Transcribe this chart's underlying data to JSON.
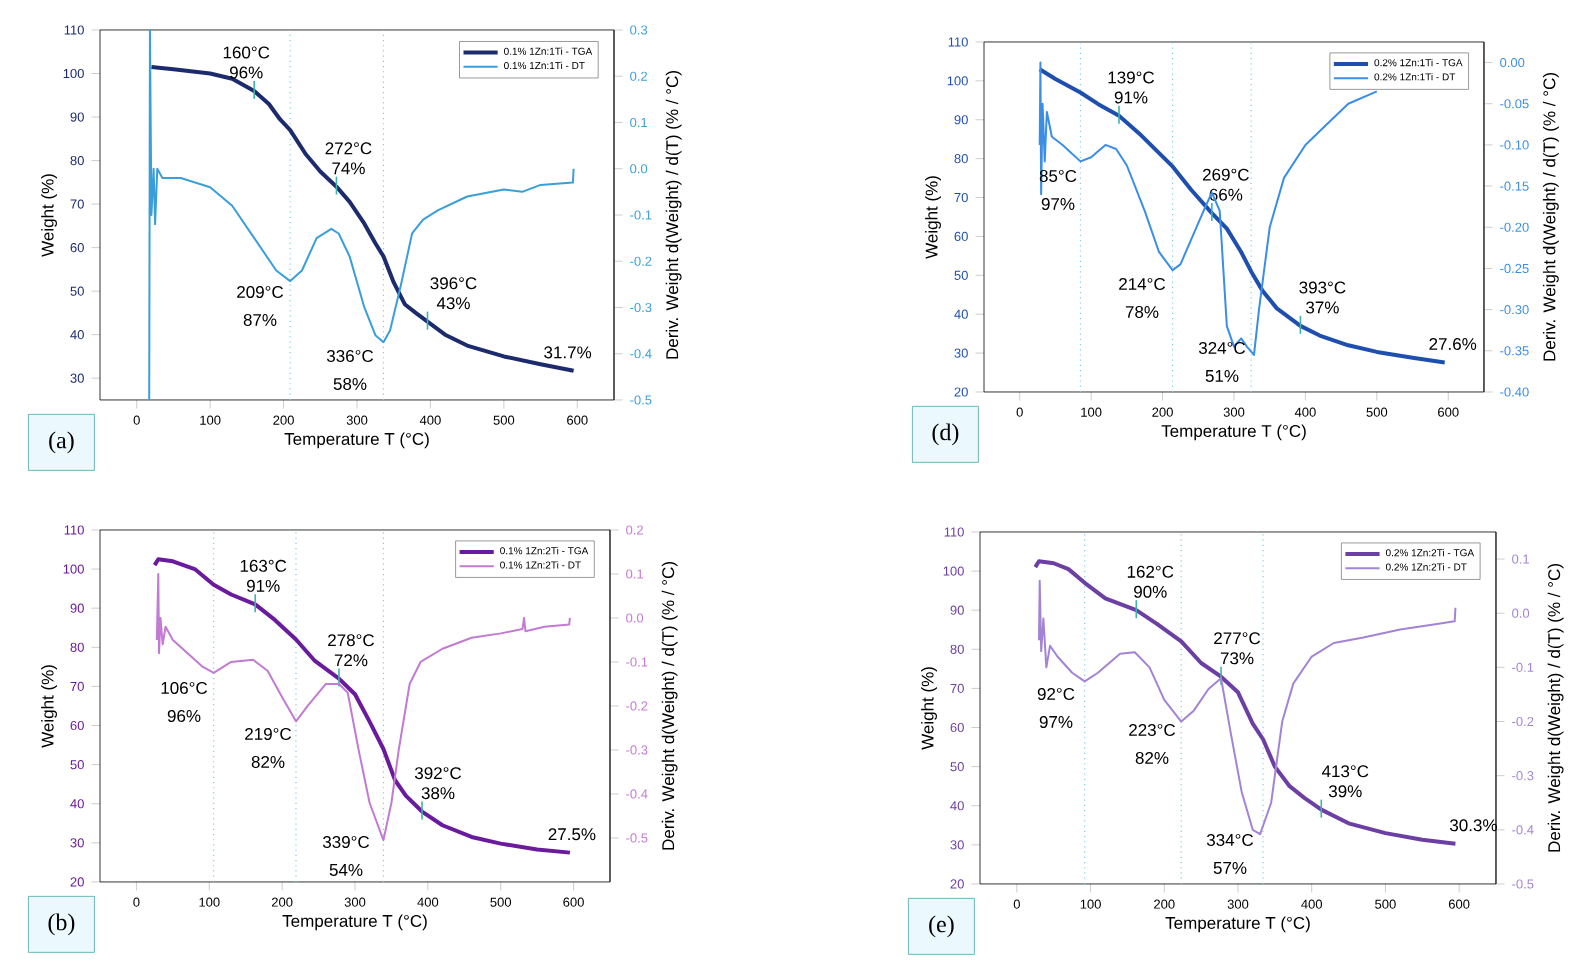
{
  "chart_data": [
    {
      "type": "line",
      "xlabel": "Temperature T (°C)",
      "ylabel": "Weight (%)",
      "y2label": "Deriv. Weight d(Weight) / d(T) (% / °C)",
      "xlim": [
        -50,
        650
      ],
      "xticks": [
        0,
        100,
        200,
        300,
        400,
        500,
        600
      ],
      "ylim": [
        25,
        110
      ],
      "yticks": [
        30,
        40,
        50,
        60,
        70,
        80,
        90,
        100,
        110
      ],
      "y2lim": [
        -0.5,
        0.3
      ],
      "y2ticks": [
        -0.5,
        -0.4,
        -0.3,
        -0.2,
        -0.1,
        {
          "value": 0,
          "label": "0.0"
        },
        0.1,
        0.2,
        0.3
      ],
      "legend": "top right",
      "series": [
        {
          "name": "0.1% 1Zn:1Ti - TGA",
          "color": "#1c2a6e",
          "x": [
            20,
            50,
            100,
            130,
            160,
            180,
            195,
            209,
            230,
            250,
            272,
            290,
            310,
            325,
            336,
            350,
            365,
            380,
            396,
            420,
            450,
            500,
            550,
            595
          ],
          "values": [
            101.5,
            101,
            100,
            98.8,
            96,
            93,
            89.5,
            87,
            81.5,
            77.5,
            74,
            70.5,
            65.5,
            61,
            58,
            52,
            47,
            45,
            43,
            40,
            37.5,
            35,
            33.2,
            31.7
          ]
        },
        {
          "name": "0.1% 1Zn:1Ti - DT",
          "color": "#3a9fd8",
          "axis": "y2",
          "x": [
            17,
            18,
            20,
            23,
            25,
            28,
            35,
            60,
            100,
            130,
            160,
            190,
            209,
            225,
            245,
            265,
            275,
            290,
            310,
            325,
            336,
            345,
            360,
            375,
            390,
            410,
            450,
            500,
            525,
            550,
            594,
            595
          ],
          "values": [
            -0.5,
            0.3,
            -0.1,
            0.0,
            -0.12,
            0.0,
            -0.02,
            -0.02,
            -0.04,
            -0.08,
            -0.15,
            -0.22,
            -0.243,
            -0.22,
            -0.15,
            -0.13,
            -0.14,
            -0.19,
            -0.3,
            -0.36,
            -0.375,
            -0.35,
            -0.25,
            -0.14,
            -0.11,
            -0.09,
            -0.06,
            -0.045,
            -0.05,
            -0.035,
            -0.03,
            0.0
          ]
        }
      ],
      "ref_lines": [
        {
          "axis": "x",
          "value": 209,
          "color": "#7fcfe3",
          "line_style": "dotted"
        },
        {
          "axis": "x",
          "value": 336,
          "color": "#7fcfe3",
          "line_style": "dotted"
        }
      ],
      "annotations": [
        {
          "text": "160°C",
          "x": 160,
          "y": 96
        },
        {
          "text": "96%",
          "x": 160,
          "y": 96
        },
        "209°C",
        "87%",
        {
          "text": "272°C",
          "x": 272,
          "y": 74
        },
        {
          "text": "74%",
          "x": 272,
          "y": 74
        },
        "336°C",
        "58%",
        {
          "text": "396°C",
          "x": 396,
          "y": 43
        },
        {
          "text": "43%",
          "x": 396,
          "y": 43
        },
        {
          "text": "31.7%",
          "x": 595,
          "y": 31.7
        },
        "(a)"
      ]
    },
    {
      "type": "line",
      "xlabel": "Temperature T (°C)",
      "ylabel": "Weight (%)",
      "y2label": "Deriv. Weight d(Weight) / d(T) (% / °C)",
      "xlim": [
        -50,
        650
      ],
      "xticks": [
        0,
        100,
        200,
        300,
        400,
        500,
        600
      ],
      "ylim": [
        20,
        110
      ],
      "yticks": [
        20,
        30,
        40,
        50,
        60,
        70,
        80,
        90,
        100,
        110
      ],
      "y2lim": [
        -0.4,
        0.025
      ],
      "y2ticks": [
        {
          "value": -0.4,
          "label": "-0.40"
        },
        -0.35,
        {
          "value": -0.3,
          "label": "-0.30"
        },
        -0.25,
        {
          "value": -0.2,
          "label": "-0.20"
        },
        -0.15,
        {
          "value": -0.1,
          "label": "-0.10"
        },
        -0.05,
        {
          "value": 0,
          "label": "0.00"
        }
      ],
      "legend": "top right",
      "series": [
        {
          "name": "0.2% 1Zn:1Ti - TGA",
          "color": "#1f4fae",
          "x": [
            28,
            50,
            85,
            110,
            139,
            170,
            214,
            240,
            269,
            290,
            310,
            324,
            340,
            360,
            393,
            420,
            460,
            500,
            550,
            595
          ],
          "values": [
            103,
            100.5,
            97,
            94,
            91,
            86,
            78,
            72,
            66,
            62,
            56,
            51,
            46,
            41.5,
            37,
            34.5,
            32,
            30.3,
            28.8,
            27.6
          ]
        },
        {
          "name": "0.2% 1Zn:1Ti - DT",
          "color": "#3a8ee8",
          "axis": "y2",
          "x": [
            28,
            29,
            30,
            32,
            35,
            38,
            45,
            60,
            85,
            100,
            120,
            135,
            150,
            175,
            195,
            214,
            225,
            240,
            260,
            269,
            280,
            290,
            300,
            310,
            318,
            328,
            335,
            350,
            370,
            400,
            430,
            460,
            500
          ],
          "values": [
            -0.1,
            0.0,
            -0.16,
            -0.05,
            -0.12,
            -0.06,
            -0.09,
            -0.1,
            -0.12,
            -0.115,
            -0.1,
            -0.105,
            -0.125,
            -0.18,
            -0.23,
            -0.252,
            -0.245,
            -0.215,
            -0.175,
            -0.158,
            -0.18,
            -0.32,
            -0.345,
            -0.335,
            -0.345,
            -0.355,
            -0.3,
            -0.2,
            -0.14,
            -0.1,
            -0.075,
            -0.05,
            -0.035
          ]
        }
      ],
      "ref_lines": [
        {
          "axis": "x",
          "value": 85,
          "color": "#7fcfe3",
          "line_style": "dotted"
        },
        {
          "axis": "x",
          "value": 214,
          "color": "#7fcfe3",
          "line_style": "dotted"
        },
        {
          "axis": "x",
          "value": 324,
          "color": "#7fcfe3",
          "line_style": "dotted"
        }
      ],
      "annotations": [
        "85°C",
        "97%",
        {
          "text": "139°C",
          "x": 139,
          "y": 91
        },
        {
          "text": "91%",
          "x": 139,
          "y": 91
        },
        "214°C",
        "78%",
        {
          "text": "269°C",
          "x": 269,
          "y": 66
        },
        {
          "text": "66%",
          "x": 269,
          "y": 66
        },
        "324°C",
        "51%",
        {
          "text": "393°C",
          "x": 393,
          "y": 37
        },
        {
          "text": "37%",
          "x": 393,
          "y": 37
        },
        {
          "text": "27.6%",
          "x": 595,
          "y": 27.6
        },
        "(d)"
      ]
    },
    {
      "type": "line",
      "xlabel": "Temperature T (°C)",
      "ylabel": "Weight (%)",
      "y2label": "Deriv. Weight d(Weight) / d(T) (% / °C)",
      "xlim": [
        -50,
        650
      ],
      "xticks": [
        0,
        100,
        200,
        300,
        400,
        500,
        600
      ],
      "ylim": [
        20,
        110
      ],
      "yticks": [
        20,
        30,
        40,
        50,
        60,
        70,
        80,
        90,
        100,
        110
      ],
      "y2lim": [
        -0.6,
        0.2
      ],
      "y2ticks": [
        -0.5,
        -0.4,
        -0.3,
        -0.2,
        -0.1,
        {
          "value": 0,
          "label": "0.0"
        },
        0.1,
        0.2
      ],
      "legend": "top right",
      "series": [
        {
          "name": "0.1% 1Zn:2Ti - TGA",
          "color": "#6a1a9c",
          "x": [
            25,
            30,
            50,
            80,
            106,
            130,
            163,
            190,
            219,
            245,
            278,
            300,
            320,
            339,
            355,
            370,
            392,
            420,
            460,
            500,
            550,
            595
          ],
          "values": [
            101,
            102.5,
            102,
            100,
            96,
            93.5,
            91,
            87,
            82,
            76.5,
            72,
            68,
            61,
            54,
            46,
            42,
            38,
            34.5,
            31.5,
            29.8,
            28.3,
            27.5
          ]
        },
        {
          "name": "0.1% 1Zn:2Ti - DT",
          "color": "#c27bd2",
          "axis": "y2",
          "x": [
            28,
            30,
            31,
            33,
            36,
            40,
            50,
            70,
            90,
            106,
            130,
            160,
            180,
            200,
            219,
            235,
            260,
            278,
            290,
            305,
            320,
            339,
            350,
            360,
            375,
            390,
            420,
            460,
            500,
            530,
            532,
            534,
            560,
            594,
            595
          ],
          "values": [
            -0.05,
            0.1,
            -0.08,
            0.0,
            -0.06,
            -0.02,
            -0.05,
            -0.08,
            -0.11,
            -0.125,
            -0.1,
            -0.095,
            -0.12,
            -0.18,
            -0.235,
            -0.2,
            -0.15,
            -0.15,
            -0.17,
            -0.3,
            -0.42,
            -0.505,
            -0.42,
            -0.3,
            -0.15,
            -0.1,
            -0.07,
            -0.045,
            -0.035,
            -0.025,
            0.0,
            -0.03,
            -0.02,
            -0.015,
            0.0
          ]
        }
      ],
      "ref_lines": [
        {
          "axis": "x",
          "value": 106,
          "color": "#7fcfe3",
          "line_style": "dotted"
        },
        {
          "axis": "x",
          "value": 219,
          "color": "#7fcfe3",
          "line_style": "dotted"
        },
        {
          "axis": "x",
          "value": 339,
          "color": "#7fcfe3",
          "line_style": "dotted"
        }
      ],
      "annotations": [
        "106°C",
        "96%",
        {
          "text": "163°C",
          "x": 163,
          "y": 91
        },
        {
          "text": "91%",
          "x": 163,
          "y": 91
        },
        "219°C",
        "82%",
        {
          "text": "278°C",
          "x": 278,
          "y": 72
        },
        {
          "text": "72%",
          "x": 278,
          "y": 72
        },
        "339°C",
        "54%",
        {
          "text": "392°C",
          "x": 392,
          "y": 38
        },
        {
          "text": "38%",
          "x": 392,
          "y": 38
        },
        {
          "text": "27.5%",
          "x": 595,
          "y": 27.5
        },
        "(b)"
      ]
    },
    {
      "type": "line",
      "xlabel": "Temperature T (°C)",
      "ylabel": "Weight (%)",
      "y2label": "Deriv. Weight d(Weight) / d(T) (% / °C)",
      "xlim": [
        -50,
        650
      ],
      "xticks": [
        0,
        100,
        200,
        300,
        400,
        500,
        600
      ],
      "ylim": [
        20,
        110
      ],
      "yticks": [
        20,
        30,
        40,
        50,
        60,
        70,
        80,
        90,
        100,
        110
      ],
      "y2lim": [
        -0.5,
        0.15
      ],
      "y2ticks": [
        -0.5,
        -0.4,
        -0.3,
        -0.2,
        -0.1,
        {
          "value": 0,
          "label": "0.0"
        },
        0.1
      ],
      "legend": "top right",
      "series": [
        {
          "name": "0.2% 1Zn:2Ti - TGA",
          "color": "#6b3fa3",
          "x": [
            25,
            30,
            50,
            70,
            92,
            120,
            162,
            190,
            223,
            250,
            277,
            300,
            320,
            334,
            350,
            370,
            390,
            413,
            450,
            500,
            550,
            595
          ],
          "values": [
            101,
            102.5,
            102,
            100.5,
            97,
            93,
            90,
            86.5,
            82,
            76.5,
            73,
            69,
            61,
            57,
            50,
            45,
            42,
            39,
            35.5,
            33,
            31.3,
            30.3
          ]
        },
        {
          "name": "0.2% 1Zn:2Ti - DT",
          "color": "#a384d4",
          "axis": "y2",
          "x": [
            30,
            31,
            33,
            36,
            40,
            45,
            55,
            75,
            92,
            110,
            140,
            160,
            180,
            200,
            223,
            240,
            260,
            277,
            290,
            305,
            320,
            330,
            345,
            360,
            375,
            400,
            430,
            470,
            520,
            570,
            594,
            595
          ],
          "values": [
            -0.05,
            0.06,
            -0.07,
            -0.01,
            -0.1,
            -0.06,
            -0.08,
            -0.11,
            -0.126,
            -0.11,
            -0.075,
            -0.072,
            -0.1,
            -0.16,
            -0.2,
            -0.18,
            -0.14,
            -0.12,
            -0.22,
            -0.33,
            -0.4,
            -0.408,
            -0.35,
            -0.2,
            -0.13,
            -0.08,
            -0.055,
            -0.045,
            -0.03,
            -0.02,
            -0.015,
            0.01
          ]
        }
      ],
      "ref_lines": [
        {
          "axis": "x",
          "value": 92,
          "color": "#7fcfe3",
          "line_style": "dotted"
        },
        {
          "axis": "x",
          "value": 223,
          "color": "#7fcfe3",
          "line_style": "dotted"
        },
        {
          "axis": "x",
          "value": 334,
          "color": "#7fcfe3",
          "line_style": "dotted"
        }
      ],
      "annotations": [
        "92°C",
        "97%",
        {
          "text": "162°C",
          "x": 162,
          "y": 90
        },
        {
          "text": "90%",
          "x": 162,
          "y": 90
        },
        "223°C",
        "82%",
        {
          "text": "277°C",
          "x": 277,
          "y": 73
        },
        {
          "text": "73%",
          "x": 277,
          "y": 73
        },
        "334°C",
        "57%",
        {
          "text": "413°C",
          "x": 413,
          "y": 39
        },
        {
          "text": "39%",
          "x": 413,
          "y": 39
        },
        {
          "text": "30.3%",
          "x": 595,
          "y": 30.3
        },
        "(e)"
      ]
    }
  ]
}
